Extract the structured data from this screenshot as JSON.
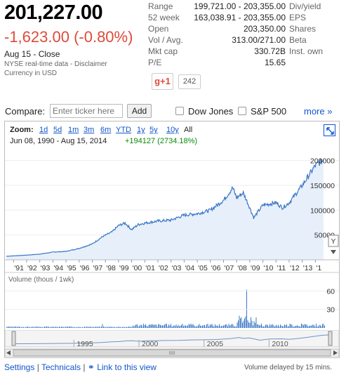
{
  "quote": {
    "price": "201,227.00",
    "change": "-1,623.00 (-0.80%)",
    "close_label": "Aug 15 - Close",
    "disclaimer": "NYSE real-time data - Disclaimer",
    "currency": "Currency in USD"
  },
  "stats_left": [
    {
      "label": "Range",
      "value": "199,721.00 - 203,355.00"
    },
    {
      "label": "52 week",
      "value": "163,038.91 - 203,355.00"
    },
    {
      "label": "Open",
      "value": "203,350.00"
    },
    {
      "label": "Vol / Avg.",
      "value": "313.00/271.00"
    },
    {
      "label": "Mkt cap",
      "value": "330.72B"
    },
    {
      "label": "P/E",
      "value": "15.65"
    }
  ],
  "stats_right": [
    {
      "label": "Div/yield"
    },
    {
      "label": "EPS"
    },
    {
      "label": "Shares"
    },
    {
      "label": "Beta"
    },
    {
      "label": "Inst. own"
    }
  ],
  "social": {
    "gplus_label": "g+1",
    "count": "242"
  },
  "compare": {
    "label": "Compare:",
    "placeholder": "Enter ticker here",
    "add_label": "Add",
    "dow_label": "Dow Jones",
    "sp_label": "S&P 500",
    "more_label": "more »"
  },
  "zoom": {
    "label": "Zoom:",
    "options": [
      "1d",
      "5d",
      "1m",
      "3m",
      "6m",
      "YTD",
      "1y",
      "5y",
      "10y"
    ],
    "all_label": "All",
    "date_range": "Jun 08, 1990  -  Aug 15, 2014",
    "range_change": "+194127 (2734.18%)"
  },
  "chart_data": {
    "type": "area",
    "x_ticks": [
      "'91",
      "'92",
      "'93",
      "'94",
      "'95",
      "'96",
      "'97",
      "'98",
      "'99",
      "'00",
      "'01",
      "'02",
      "'03",
      "'04",
      "'05",
      "'06",
      "'07",
      "'08",
      "'09",
      "'10",
      "'11",
      "'12",
      "'13",
      "'1"
    ],
    "y_ticks": [
      "200000",
      "150000",
      "100000",
      "50000"
    ],
    "ylim": [
      0,
      215000
    ],
    "years": [
      1990.45,
      1991,
      1992,
      1993,
      1994,
      1995,
      1996,
      1997,
      1997.8,
      1998.5,
      1999,
      1999.5,
      2000,
      2000.5,
      2001,
      2002,
      2003,
      2004,
      2005,
      2006,
      2007,
      2007.7,
      2008,
      2008.5,
      2009,
      2009.3,
      2010,
      2011,
      2011.5,
      2012,
      2013,
      2014,
      2014.62
    ],
    "values": [
      7100,
      8000,
      9500,
      11500,
      15500,
      17000,
      23000,
      32000,
      47000,
      56000,
      69000,
      74000,
      61000,
      71000,
      74000,
      78000,
      80000,
      90000,
      93000,
      100000,
      120000,
      145000,
      125000,
      135000,
      105000,
      85000,
      110000,
      115000,
      105000,
      115000,
      150000,
      190000,
      201227
    ],
    "volume_label": "Volume (thous / 1wk)",
    "volume_ticks": [
      "60",
      "30"
    ],
    "navigator_ticks": [
      "1995",
      "2000",
      "2005",
      "2010"
    ]
  },
  "footer": {
    "settings": "Settings",
    "sep1": "|",
    "technicals": "Technicals",
    "sep2": "|",
    "link_view": "Link to this view",
    "volume_delay": "Volume delayed by 15 mins."
  },
  "colors": {
    "accent": "#1155cc",
    "negative": "#dd4b39",
    "positive": "#0a8a0a",
    "line": "#3d78c7",
    "fill": "#e7f0fa"
  }
}
